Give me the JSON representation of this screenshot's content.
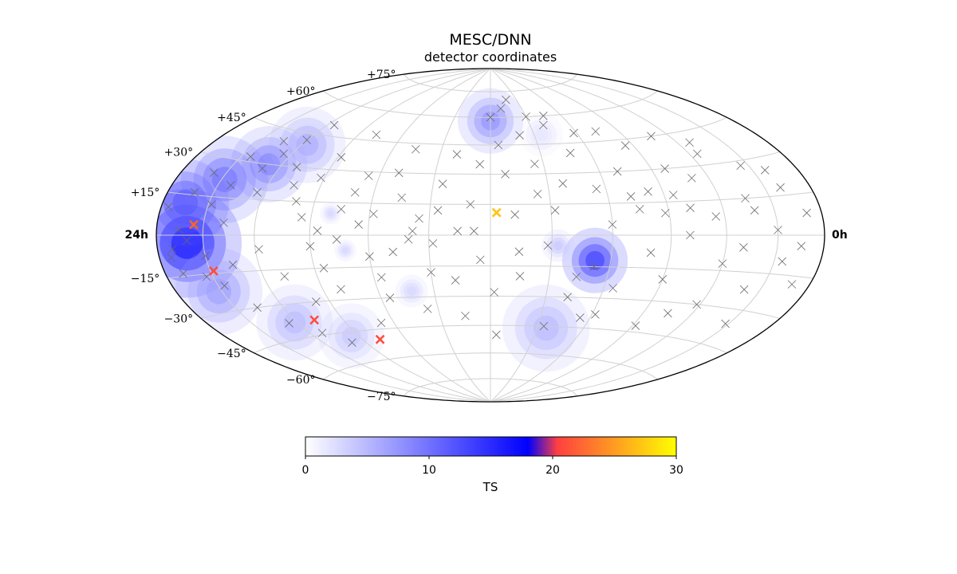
{
  "chart_data": {
    "type": "scatter",
    "projection": "hammer-aitoff",
    "title": "MESC/DNN",
    "subtitle": "detector coordinates",
    "ra_labels": {
      "left": "24h",
      "right": "0h"
    },
    "lat_ticks": [
      {
        "value": 75,
        "label": "+75°"
      },
      {
        "value": 60,
        "label": "+60°"
      },
      {
        "value": 45,
        "label": "+45°"
      },
      {
        "value": 30,
        "label": "+30°"
      },
      {
        "value": 15,
        "label": "+15°"
      },
      {
        "value": -15,
        "label": "−15°"
      },
      {
        "value": -30,
        "label": "−30°"
      },
      {
        "value": -45,
        "label": "−45°"
      },
      {
        "value": -60,
        "label": "−60°"
      },
      {
        "value": -75,
        "label": "−75°"
      }
    ],
    "grid": true,
    "colorbar": {
      "label": "TS",
      "min": 0,
      "max": 30,
      "ticks": [
        0,
        10,
        20,
        30
      ],
      "colormap": [
        "#ffffff",
        "#0000ff",
        "#ff4040",
        "#ffff00"
      ],
      "colormap_stops": [
        0,
        0.6,
        0.68,
        1
      ]
    },
    "ts_hotspots": [
      {
        "lon": -160,
        "lat": -3,
        "ts": 17,
        "sigma": 10
      },
      {
        "lon": -165,
        "lat": 12,
        "ts": 12,
        "sigma": 8
      },
      {
        "lon": -148,
        "lat": 22,
        "ts": 10,
        "sigma": 8
      },
      {
        "lon": -128,
        "lat": 30,
        "ts": 9,
        "sigma": 7
      },
      {
        "lon": -116,
        "lat": 40,
        "ts": 6,
        "sigma": 7
      },
      {
        "lon": -152,
        "lat": -22,
        "ts": 7,
        "sigma": 8
      },
      {
        "lon": -122,
        "lat": -38,
        "ts": 5,
        "sigma": 7
      },
      {
        "lon": -95,
        "lat": -47,
        "ts": 4,
        "sigma": 6
      },
      {
        "lon": 0,
        "lat": 58,
        "ts": 8,
        "sigma": 6
      },
      {
        "lon": 52,
        "lat": -12,
        "ts": 14,
        "sigma": 6
      },
      {
        "lon": 36,
        "lat": -46,
        "ts": 5,
        "sigma": 8
      },
      {
        "lon": -42,
        "lat": -27,
        "ts": 3,
        "sigma": 3
      },
      {
        "lon": -80,
        "lat": 10,
        "ts": 3,
        "sigma": 2
      },
      {
        "lon": -72,
        "lat": -7,
        "ts": 3,
        "sigma": 2
      },
      {
        "lon": 33,
        "lat": -5,
        "ts": 4,
        "sigma": 3
      },
      {
        "lon": 35,
        "lat": 50,
        "ts": 2,
        "sigma": 4
      }
    ],
    "events": [
      [
        -170,
        -5
      ],
      [
        -165,
        2
      ],
      [
        -160,
        -2
      ],
      [
        -155,
        4
      ],
      [
        -150,
        -8
      ],
      [
        -148,
        12
      ],
      [
        -142,
        20
      ],
      [
        -138,
        5
      ],
      [
        -135,
        -12
      ],
      [
        -130,
        28
      ],
      [
        -125,
        35
      ],
      [
        -120,
        42
      ],
      [
        -115,
        50
      ],
      [
        -110,
        30
      ],
      [
        -105,
        22
      ],
      [
        -100,
        15
      ],
      [
        -95,
        8
      ],
      [
        -90,
        -5
      ],
      [
        -85,
        -15
      ],
      [
        -80,
        -25
      ],
      [
        -75,
        12
      ],
      [
        -70,
        20
      ],
      [
        -65,
        5
      ],
      [
        -60,
        -10
      ],
      [
        -55,
        -30
      ],
      [
        -50,
        30
      ],
      [
        -45,
        18
      ],
      [
        -40,
        -2
      ],
      [
        -35,
        8
      ],
      [
        -30,
        -18
      ],
      [
        -25,
        25
      ],
      [
        -20,
        40
      ],
      [
        -15,
        -40
      ],
      [
        -10,
        15
      ],
      [
        -5,
        -12
      ],
      [
        0,
        60
      ],
      [
        5,
        45
      ],
      [
        8,
        30
      ],
      [
        12,
        10
      ],
      [
        15,
        -20
      ],
      [
        20,
        50
      ],
      [
        25,
        35
      ],
      [
        28,
        -5
      ],
      [
        32,
        12
      ],
      [
        38,
        25
      ],
      [
        42,
        -30
      ],
      [
        45,
        60
      ],
      [
        48,
        40
      ],
      [
        52,
        -15
      ],
      [
        55,
        22
      ],
      [
        60,
        5
      ],
      [
        65,
        -25
      ],
      [
        70,
        30
      ],
      [
        75,
        12
      ],
      [
        80,
        -8
      ],
      [
        85,
        42
      ],
      [
        90,
        -20
      ],
      [
        95,
        18
      ],
      [
        100,
        0
      ],
      [
        105,
        -35
      ],
      [
        110,
        25
      ],
      [
        115,
        8
      ],
      [
        120,
        -12
      ],
      [
        125,
        35
      ],
      [
        130,
        -5
      ],
      [
        135,
        15
      ],
      [
        140,
        -22
      ],
      [
        145,
        28
      ],
      [
        150,
        2
      ],
      [
        155,
        -10
      ],
      [
        160,
        18
      ],
      [
        165,
        -4
      ],
      [
        170,
        8
      ],
      [
        -168,
        -14
      ],
      [
        -158,
        24
      ],
      [
        -146,
        -20
      ],
      [
        -136,
        -30
      ],
      [
        -126,
        -38
      ],
      [
        -112,
        -44
      ],
      [
        -100,
        -50
      ],
      [
        -88,
        36
      ],
      [
        -78,
        48
      ],
      [
        -68,
        -42
      ],
      [
        -58,
        10
      ],
      [
        -48,
        -8
      ],
      [
        -38,
        2
      ],
      [
        -28,
        -4
      ],
      [
        -18,
        -22
      ],
      [
        -8,
        2
      ],
      [
        2,
        -28
      ],
      [
        10,
        65
      ],
      [
        18,
        70
      ],
      [
        30,
        60
      ],
      [
        40,
        55
      ],
      [
        58,
        50
      ],
      [
        72,
        18
      ],
      [
        88,
        10
      ],
      [
        98,
        30
      ],
      [
        108,
        45
      ],
      [
        118,
        -30
      ],
      [
        128,
        40
      ],
      [
        138,
        10
      ],
      [
        148,
        -36
      ],
      [
        158,
        25
      ],
      [
        168,
        -18
      ],
      [
        -175,
        10
      ],
      [
        -172,
        -8
      ],
      [
        -162,
        16
      ],
      [
        -154,
        -16
      ],
      [
        -144,
        32
      ],
      [
        -134,
        40
      ],
      [
        -124,
        18
      ],
      [
        -118,
        -6
      ],
      [
        -108,
        -18
      ],
      [
        -98,
        -30
      ],
      [
        -92,
        26
      ],
      [
        -86,
        2
      ],
      [
        -76,
        -2
      ],
      [
        -66,
        28
      ],
      [
        -56,
        -20
      ],
      [
        -46,
        42
      ],
      [
        -36,
        -36
      ],
      [
        -26,
        12
      ],
      [
        -16,
        2
      ],
      [
        -6,
        35
      ],
      [
        4,
        -50
      ],
      [
        14,
        -8
      ],
      [
        24,
        20
      ],
      [
        34,
        -45
      ],
      [
        44,
        -20
      ],
      [
        54,
        -40
      ],
      [
        62,
        -38
      ],
      [
        74,
        50
      ],
      [
        82,
        20
      ],
      [
        92,
        -42
      ],
      [
        102,
        12
      ]
    ],
    "highlighted_events": [
      {
        "lon": -156,
        "lat": 4,
        "ts": 22
      },
      {
        "lon": -148,
        "lat": -14,
        "ts": 21
      },
      {
        "lon": -108,
        "lat": -38,
        "ts": 21
      },
      {
        "lon": -78,
        "lat": -50,
        "ts": 21
      },
      {
        "lon": 3,
        "lat": 11,
        "ts": 27
      }
    ]
  }
}
